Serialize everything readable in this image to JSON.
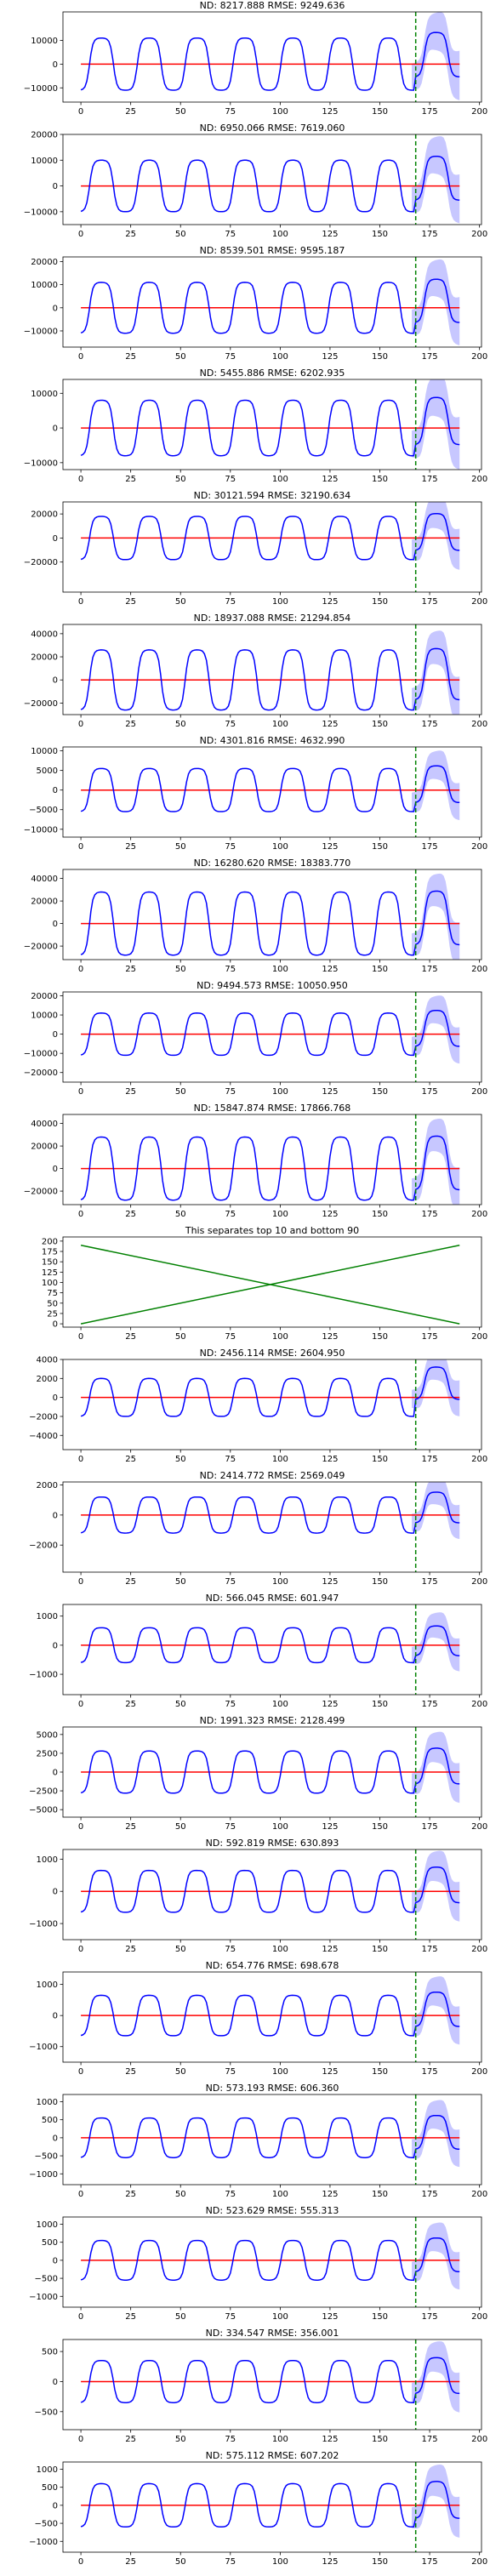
{
  "chart_data": [
    {
      "type": "line",
      "title": "ND:  8217.888 RMSE:  9249.636",
      "yticks": [
        -10000,
        0,
        10000
      ],
      "yticklabels": [
        "−10000",
        "0",
        "10000"
      ],
      "ylim": [
        -16000,
        22000
      ],
      "amp": 11000,
      "forecast_offset": 4000,
      "band": 11000,
      "prediction": 0,
      "forecast_start": 168
    },
    {
      "type": "line",
      "title": "ND:  6950.066 RMSE:  7619.060",
      "yticks": [
        -10000,
        0,
        10000,
        20000
      ],
      "yticklabels": [
        "−10000",
        "0",
        "10000",
        "20000"
      ],
      "ylim": [
        -15000,
        20000
      ],
      "amp": 10000,
      "forecast_offset": 3000,
      "band": 10000,
      "prediction": 0,
      "forecast_start": 168
    },
    {
      "type": "line",
      "title": "ND:  8539.501 RMSE:  9595.187",
      "yticks": [
        -10000,
        0,
        10000,
        20000
      ],
      "yticklabels": [
        "−10000",
        "0",
        "10000",
        "20000"
      ],
      "ylim": [
        -17000,
        22000
      ],
      "amp": 11000,
      "forecast_offset": 3000,
      "band": 11000,
      "prediction": 0,
      "forecast_start": 168
    },
    {
      "type": "line",
      "title": "ND:  5455.886 RMSE:  6202.935",
      "yticks": [
        -10000,
        0,
        10000
      ],
      "yticklabels": [
        "−10000",
        "0",
        "10000"
      ],
      "ylim": [
        -12000,
        14000
      ],
      "amp": 8000,
      "forecast_offset": 2000,
      "band": 8000,
      "prediction": 0,
      "forecast_start": 168
    },
    {
      "type": "line",
      "title": "ND:  30121.594 RMSE:  32190.634",
      "yticks": [
        -20000,
        0,
        20000
      ],
      "yticklabels": [
        "−20000",
        "0",
        "20000"
      ],
      "ylim": [
        -45000,
        30000
      ],
      "amp": 18000,
      "forecast_offset": 5000,
      "band": 18000,
      "prediction": 0,
      "forecast_start": 168
    },
    {
      "type": "line",
      "title": "ND:  18937.088 RMSE:  21294.854",
      "yticks": [
        -20000,
        0,
        20000,
        40000
      ],
      "yticklabels": [
        "−20000",
        "0",
        "20000",
        "40000"
      ],
      "ylim": [
        -30000,
        48000
      ],
      "amp": 26000,
      "forecast_offset": 5000,
      "band": 20000,
      "prediction": 0,
      "forecast_start": 168
    },
    {
      "type": "line",
      "title": "ND:  4301.816 RMSE:  4632.990",
      "yticks": [
        -10000,
        -5000,
        0,
        5000,
        10000
      ],
      "yticklabels": [
        "−10000",
        "−5000",
        "0",
        "5000",
        "10000"
      ],
      "ylim": [
        -12000,
        11000
      ],
      "amp": 5500,
      "forecast_offset": 1500,
      "band": 5000,
      "prediction": 0,
      "forecast_start": 168
    },
    {
      "type": "line",
      "title": "ND:  16280.620 RMSE:  18383.770",
      "yticks": [
        -20000,
        0,
        20000,
        40000
      ],
      "yticklabels": [
        "−20000",
        "0",
        "20000",
        "40000"
      ],
      "ylim": [
        -32000,
        48000
      ],
      "amp": 28000,
      "forecast_offset": 5000,
      "band": 20000,
      "prediction": 0,
      "forecast_start": 168
    },
    {
      "type": "line",
      "title": "ND:  9494.573 RMSE:  10050.950",
      "yticks": [
        -20000,
        -10000,
        0,
        10000,
        20000
      ],
      "yticklabels": [
        "−20000",
        "−10000",
        "0",
        "10000",
        "20000"
      ],
      "ylim": [
        -25000,
        22000
      ],
      "amp": 11000,
      "forecast_offset": 3000,
      "band": 10000,
      "prediction": 0,
      "forecast_start": 168
    },
    {
      "type": "line",
      "title": "ND:  15847.874 RMSE:  17866.768",
      "yticks": [
        -20000,
        0,
        20000,
        40000
      ],
      "yticklabels": [
        "−20000",
        "0",
        "20000",
        "40000"
      ],
      "ylim": [
        -32000,
        48000
      ],
      "amp": 28000,
      "forecast_offset": 5000,
      "band": 20000,
      "prediction": 0,
      "forecast_start": 168
    },
    {
      "type": "line",
      "title": "This separates top 10 and bottom 90",
      "separator": true,
      "yticks": [
        0,
        25,
        50,
        75,
        100,
        125,
        150,
        175,
        200
      ],
      "yticklabels": [
        "0",
        "25",
        "50",
        "75",
        "100",
        "125",
        "150",
        "175",
        "200"
      ],
      "ylim": [
        -8,
        210
      ],
      "lines": [
        {
          "x": [
            0,
            190
          ],
          "y": [
            0,
            190
          ]
        },
        {
          "x": [
            0,
            190
          ],
          "y": [
            190,
            0
          ]
        }
      ]
    },
    {
      "type": "line",
      "title": "ND:  2456.114 RMSE:  2604.950",
      "yticks": [
        -4000,
        -2000,
        0,
        2000,
        4000
      ],
      "yticklabels": [
        "−4000",
        "−2000",
        "0",
        "2000",
        "4000"
      ],
      "ylim": [
        -5500,
        4000
      ],
      "amp": 2000,
      "forecast_offset": 1500,
      "band": 2000,
      "prediction": 0,
      "forecast_start": 168
    },
    {
      "type": "line",
      "title": "ND:  2414.772 RMSE:  2569.049",
      "yticks": [
        -2000,
        0,
        2000
      ],
      "yticklabels": [
        "−2000",
        "0",
        "2000"
      ],
      "ylim": [
        -3800,
        2200
      ],
      "amp": 1200,
      "forecast_offset": 500,
      "band": 1200,
      "prediction": 0,
      "forecast_start": 168
    },
    {
      "type": "line",
      "title": "ND:  566.045 RMSE:  601.947",
      "yticks": [
        -1000,
        0,
        1000
      ],
      "yticklabels": [
        "−1000",
        "0",
        "1000"
      ],
      "ylim": [
        -1700,
        1400
      ],
      "amp": 600,
      "forecast_offset": 150,
      "band": 600,
      "prediction": 0,
      "forecast_start": 168
    },
    {
      "type": "line",
      "title": "ND:  1991.323 RMSE:  2128.499",
      "yticks": [
        -5000,
        -2500,
        0,
        2500,
        5000
      ],
      "yticklabels": [
        "−5000",
        "−2500",
        "0",
        "2500",
        "5000"
      ],
      "ylim": [
        -6000,
        6000
      ],
      "amp": 2800,
      "forecast_offset": 800,
      "band": 2800,
      "prediction": 0,
      "forecast_start": 168
    },
    {
      "type": "line",
      "title": "ND:  592.819 RMSE:  630.893",
      "yticks": [
        -1000,
        0,
        1000
      ],
      "yticklabels": [
        "−1000",
        "0",
        "1000"
      ],
      "ylim": [
        -1500,
        1300
      ],
      "amp": 650,
      "forecast_offset": 200,
      "band": 650,
      "prediction": 0,
      "forecast_start": 168
    },
    {
      "type": "line",
      "title": "ND:  654.776 RMSE:  698.678",
      "yticks": [
        -1000,
        0,
        1000
      ],
      "yticklabels": [
        "−1000",
        "0",
        "1000"
      ],
      "ylim": [
        -1500,
        1400
      ],
      "amp": 650,
      "forecast_offset": 200,
      "band": 650,
      "prediction": 0,
      "forecast_start": 168
    },
    {
      "type": "line",
      "title": "ND:  573.193 RMSE:  606.360",
      "yticks": [
        -1000,
        -500,
        0,
        500,
        1000
      ],
      "yticklabels": [
        "−1000",
        "−500",
        "0",
        "500",
        "1000"
      ],
      "ylim": [
        -1300,
        1200
      ],
      "amp": 550,
      "forecast_offset": 150,
      "band": 550,
      "prediction": 0,
      "forecast_start": 168
    },
    {
      "type": "line",
      "title": "ND:  523.629 RMSE:  555.313",
      "yticks": [
        -1000,
        -500,
        0,
        500,
        1000
      ],
      "yticklabels": [
        "−1000",
        "−500",
        "0",
        "500",
        "1000"
      ],
      "ylim": [
        -1300,
        1200
      ],
      "amp": 550,
      "forecast_offset": 150,
      "band": 550,
      "prediction": 0,
      "forecast_start": 168
    },
    {
      "type": "line",
      "title": "ND:  334.547 RMSE:  356.001",
      "yticks": [
        -500,
        0,
        500
      ],
      "yticklabels": [
        "−500",
        "0",
        "500"
      ],
      "ylim": [
        -800,
        700
      ],
      "amp": 350,
      "forecast_offset": 100,
      "band": 350,
      "prediction": 0,
      "forecast_start": 168
    },
    {
      "type": "line",
      "title": "ND:  575.112 RMSE:  607.202",
      "yticks": [
        -1000,
        -500,
        0,
        500,
        1000
      ],
      "yticklabels": [
        "−1000",
        "−500",
        "0",
        "500",
        "1000"
      ],
      "ylim": [
        -1300,
        1200
      ],
      "amp": 600,
      "forecast_offset": 150,
      "band": 600,
      "prediction": 0,
      "forecast_start": 168
    }
  ],
  "shared": {
    "xticks": [
      0,
      25,
      50,
      75,
      100,
      125,
      150,
      175,
      200
    ],
    "xticklabels": [
      "0",
      "25",
      "50",
      "75",
      "100",
      "125",
      "150",
      "175",
      "200"
    ],
    "xlim": [
      -9,
      201
    ],
    "series_x_max": 190,
    "period": 24,
    "colors": {
      "target": "#0000ff",
      "prediction": "#ff0000",
      "band": "#9999ff",
      "forecast_line": "#008000",
      "separator_lines": "#008000",
      "axis": "#000000"
    }
  }
}
